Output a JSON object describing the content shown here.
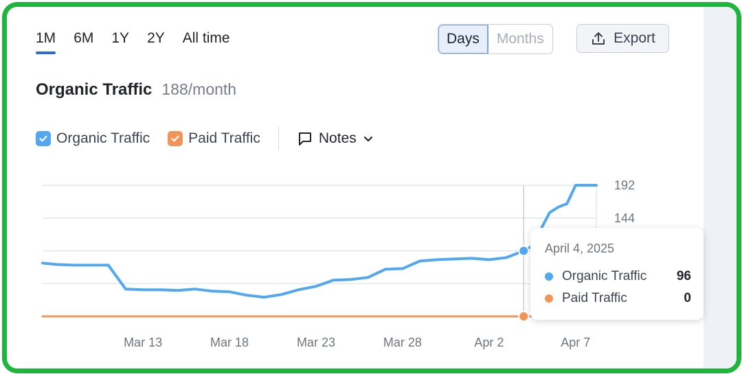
{
  "range_tabs": [
    {
      "label": "1M",
      "active": true
    },
    {
      "label": "6M",
      "active": false
    },
    {
      "label": "1Y",
      "active": false
    },
    {
      "label": "2Y",
      "active": false
    },
    {
      "label": "All time",
      "active": false
    }
  ],
  "granularity": {
    "days": "Days",
    "months": "Months",
    "selected": "Days"
  },
  "export_label": "Export",
  "metric": {
    "title": "Organic Traffic",
    "value": "188/month"
  },
  "legend": {
    "organic": "Organic Traffic",
    "paid": "Paid Traffic",
    "notes": "Notes"
  },
  "colors": {
    "organic": "#52a8ef",
    "paid": "#f0945a",
    "accent": "#2e6bd9",
    "frame": "#1db53c"
  },
  "tooltip": {
    "date": "April 4, 2025",
    "rows": [
      {
        "name": "Organic Traffic",
        "value": "96",
        "color": "#52a8ef"
      },
      {
        "name": "Paid Traffic",
        "value": "0",
        "color": "#f0945a"
      }
    ]
  },
  "chart_data": {
    "type": "line",
    "x_tick_labels": [
      "Mar 13",
      "Mar 18",
      "Mar 23",
      "Mar 28",
      "Apr 2",
      "Apr 7"
    ],
    "x_tick_days": [
      13,
      18,
      23,
      28,
      33,
      38
    ],
    "y_ticks": [
      192,
      144
    ],
    "ylim": [
      0,
      192
    ],
    "grid": true,
    "cursor_day": 35,
    "series": [
      {
        "name": "Organic Traffic",
        "color": "#52a8ef",
        "x_days": [
          7.2,
          8,
          9,
          10,
          11,
          12,
          13,
          14,
          15,
          16,
          17,
          18,
          19,
          20,
          21,
          22,
          23,
          24,
          25,
          26,
          27,
          28,
          29,
          30,
          31,
          32,
          33,
          34,
          35,
          35.5,
          36,
          36.5,
          37,
          37.5,
          38,
          39,
          39.2
        ],
        "values": [
          78,
          76,
          75,
          75,
          75,
          40,
          39,
          39,
          38,
          40,
          37,
          36,
          31,
          28,
          32,
          39,
          44,
          53,
          54,
          57,
          69,
          70,
          81,
          83,
          84,
          85,
          83,
          86,
          96,
          103,
          128,
          152,
          160,
          165,
          192,
          192,
          192
        ]
      },
      {
        "name": "Paid Traffic",
        "color": "#f0945a",
        "x_days": [
          7.2,
          39.2
        ],
        "values": [
          0,
          0
        ]
      }
    ]
  }
}
